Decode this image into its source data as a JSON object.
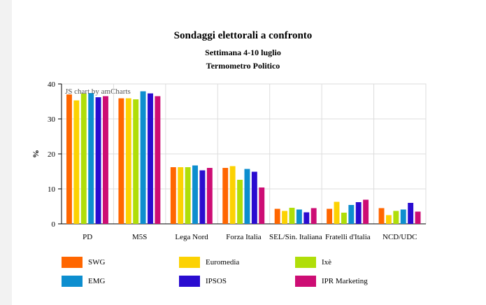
{
  "chart_data": {
    "type": "bar",
    "title": "Sondaggi elettorali a confronto",
    "subtitle": "Settimana 4-10 luglio",
    "subtitle2": "Termometro Politico",
    "watermark": "JS chart by amCharts",
    "ylabel": "%",
    "xlabel": "",
    "ylim": [
      0,
      40
    ],
    "yticks": [
      0,
      10,
      20,
      30,
      40
    ],
    "grid": true,
    "legend_position": "bottom",
    "categories": [
      "PD",
      "M5S",
      "Lega Nord",
      "Forza Italia",
      "SEL/Sin. Italiana",
      "Fratelli d'Italia",
      "NCD/UDC"
    ],
    "series": [
      {
        "name": "SWG",
        "color": "#ff6600",
        "values": [
          37.0,
          35.9,
          16.2,
          16.0,
          4.3,
          4.3,
          4.5
        ]
      },
      {
        "name": "Euromedia",
        "color": "#fcd202",
        "values": [
          35.3,
          35.9,
          16.2,
          16.5,
          3.7,
          6.3,
          2.5
        ]
      },
      {
        "name": "Ixè",
        "color": "#b0de09",
        "values": [
          37.3,
          35.6,
          16.2,
          12.6,
          4.6,
          3.2,
          3.7
        ]
      },
      {
        "name": "EMG",
        "color": "#0d8ecf",
        "values": [
          37.4,
          37.9,
          16.7,
          15.7,
          4.1,
          5.4,
          4.1
        ]
      },
      {
        "name": "IPSOS",
        "color": "#2a0cd0",
        "values": [
          36.2,
          37.3,
          15.3,
          14.9,
          3.3,
          6.2,
          6.0
        ]
      },
      {
        "name": "IPR Marketing",
        "color": "#cd0d74",
        "values": [
          36.5,
          36.5,
          16.0,
          10.4,
          4.5,
          6.9,
          3.5
        ]
      }
    ]
  }
}
